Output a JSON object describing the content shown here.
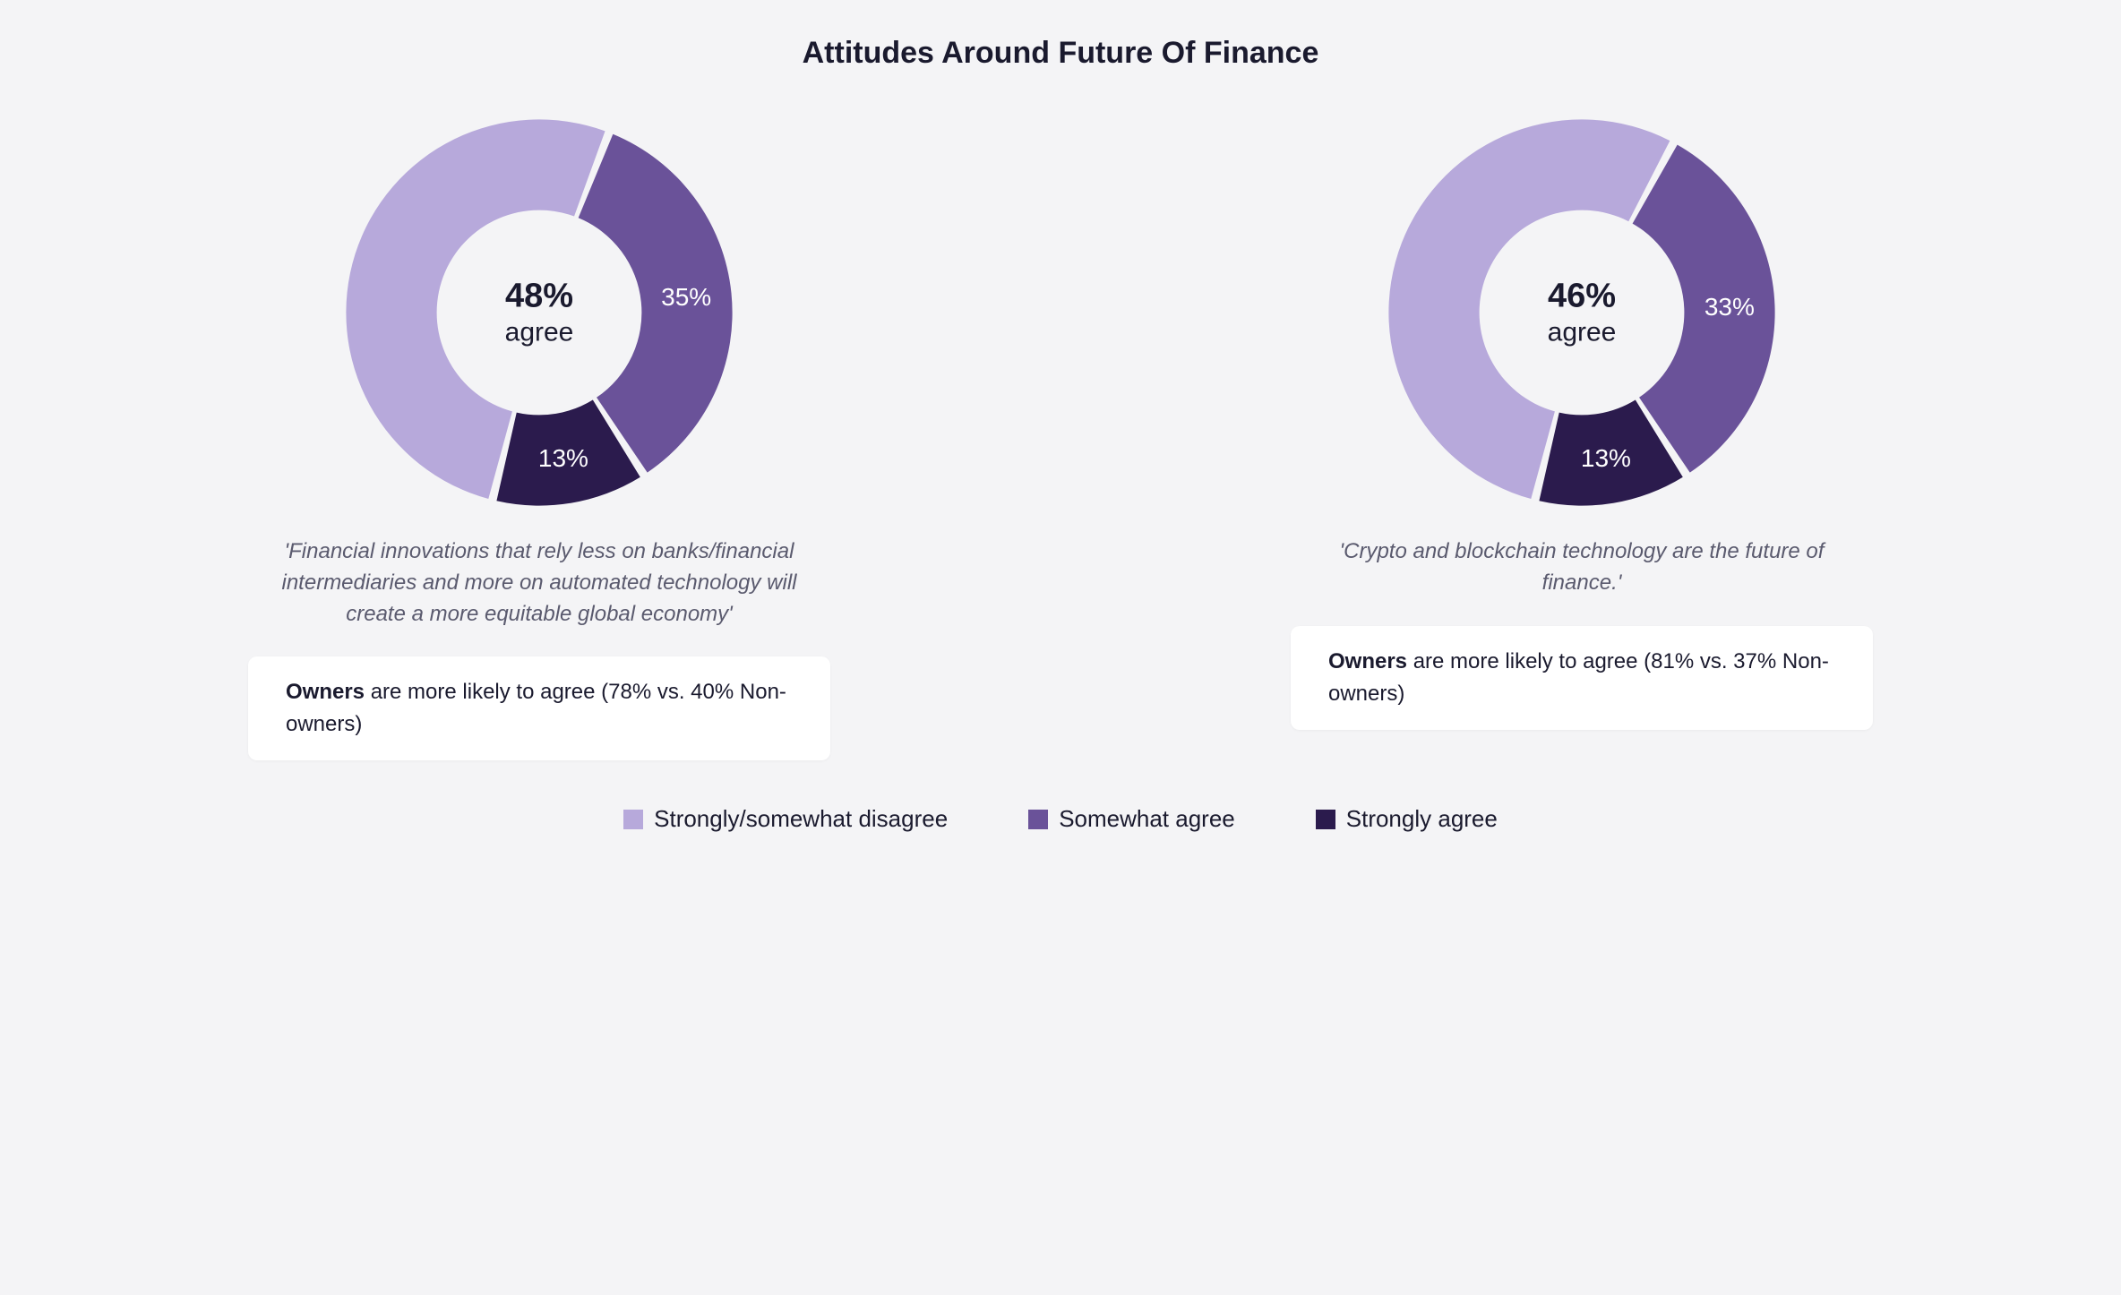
{
  "title": "Attitudes Around Future Of Finance",
  "background_color": "#f4f4f6",
  "text_color": "#1a1a2e",
  "caption_color": "#5a5a6e",
  "note_bg": "#ffffff",
  "charts": [
    {
      "type": "donut",
      "center_pct": "48%",
      "center_word": "agree",
      "caption": "'Financial innovations that rely less on banks/financial intermediaries and more on automated technology will create a more equitable global economy'",
      "note_strong": "Owners",
      "note_rest": " are more likely to agree (78% vs. 40% Non-owners)",
      "slices": [
        {
          "label": "Strongly/somewhat disagree",
          "value": 52,
          "color": "#b7a9db",
          "show_label": ""
        },
        {
          "label": "Somewhat agree",
          "value": 35,
          "color": "#6a5299",
          "show_label": "35%"
        },
        {
          "label": "Strongly agree",
          "value": 13,
          "color": "#2b1b4d",
          "show_label": "13%"
        }
      ],
      "inner_radius": 0.52,
      "outer_radius": 0.98,
      "gap_deg": 2.5,
      "start_angle_deg": -166
    },
    {
      "type": "donut",
      "center_pct": "46%",
      "center_word": "agree",
      "caption": "'Crypto and blockchain technology are the future of finance.'",
      "note_strong": "Owners",
      "note_rest": " are more likely to agree (81% vs. 37% Non-owners)",
      "slices": [
        {
          "label": "Strongly/somewhat disagree",
          "value": 54,
          "color": "#b7a9db",
          "show_label": ""
        },
        {
          "label": "Somewhat agree",
          "value": 33,
          "color": "#6a5299",
          "show_label": "33%"
        },
        {
          "label": "Strongly agree",
          "value": 13,
          "color": "#2b1b4d",
          "show_label": "13%"
        }
      ],
      "inner_radius": 0.52,
      "outer_radius": 0.98,
      "gap_deg": 2.5,
      "start_angle_deg": -166
    }
  ],
  "legend": [
    {
      "label": "Strongly/somewhat disagree",
      "color": "#b7a9db"
    },
    {
      "label": "Somewhat agree",
      "color": "#6a5299"
    },
    {
      "label": "Strongly agree",
      "color": "#2b1b4d"
    }
  ]
}
